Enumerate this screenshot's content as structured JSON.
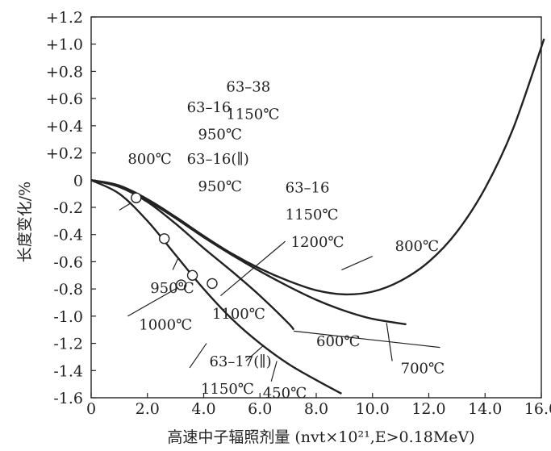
{
  "chart_data": {
    "type": "line",
    "xlabel": "高速中子辐照剂量 (nvt×10²¹,E>0.18MeV)",
    "ylabel": "长度变化/%",
    "xlim": [
      0,
      16.0
    ],
    "ylim": [
      -1.6,
      1.2
    ],
    "x_ticks": [
      "0",
      "2.0",
      "4.0",
      "6.0",
      "8.0",
      "10.0",
      "12.0",
      "14.0",
      "16.0"
    ],
    "y_ticks": [
      "+1.2",
      "+1.0",
      "+0.8",
      "+0.6",
      "+0.4",
      "+0.2",
      "0",
      "-0.2",
      "-0.4",
      "-0.6",
      "-0.8",
      "-1.0",
      "-1.2",
      "-1.4",
      "-1.6"
    ],
    "grid": false,
    "series": [
      {
        "name": "800℃",
        "x": [
          0,
          1,
          2,
          3,
          4,
          5,
          6,
          7,
          8,
          9,
          10,
          11,
          12,
          13,
          14,
          15,
          16.1
        ],
        "values": [
          0,
          -0.04,
          -0.14,
          -0.27,
          -0.41,
          -0.54,
          -0.65,
          -0.74,
          -0.81,
          -0.84,
          -0.82,
          -0.74,
          -0.6,
          -0.38,
          -0.06,
          0.38,
          1.04
        ]
      },
      {
        "name": "700℃",
        "x": [
          0,
          1,
          2,
          3,
          4,
          5,
          6,
          7,
          8,
          9,
          10,
          11.2
        ],
        "values": [
          0,
          -0.04,
          -0.15,
          -0.28,
          -0.42,
          -0.55,
          -0.67,
          -0.78,
          -0.88,
          -0.96,
          -1.02,
          -1.06
        ]
      },
      {
        "name": "600℃",
        "x": [
          0,
          1,
          2,
          3,
          4,
          5,
          6,
          7,
          7.2
        ],
        "values": [
          0,
          -0.05,
          -0.16,
          -0.32,
          -0.5,
          -0.67,
          -0.85,
          -1.05,
          -1.1
        ]
      },
      {
        "name": "450℃",
        "x": [
          0,
          1,
          2,
          3,
          4,
          5,
          6,
          7,
          8,
          8.9
        ],
        "values": [
          0,
          -0.1,
          -0.3,
          -0.55,
          -0.8,
          -1.02,
          -1.2,
          -1.35,
          -1.47,
          -1.57
        ]
      }
    ],
    "points": [
      {
        "x": 1.6,
        "y": -0.13
      },
      {
        "x": 2.6,
        "y": -0.43
      },
      {
        "x": 3.2,
        "y": -0.77
      },
      {
        "x": 3.6,
        "y": -0.7
      },
      {
        "x": 4.3,
        "y": -0.76
      }
    ],
    "annotations": [
      {
        "text": "63–38",
        "x": 4.8,
        "y": 0.65
      },
      {
        "text": "1150℃",
        "x": 4.8,
        "y": 0.45
      },
      {
        "text": "63–16",
        "x": 3.4,
        "y": 0.5
      },
      {
        "text": "950℃",
        "x": 3.8,
        "y": 0.3
      },
      {
        "text": "63–16(∥)",
        "x": 3.4,
        "y": 0.12
      },
      {
        "text": "950℃",
        "x": 3.8,
        "y": -0.08
      },
      {
        "text": "800℃",
        "x": 1.3,
        "y": 0.12
      },
      {
        "text": "63–16",
        "x": 6.9,
        "y": -0.09
      },
      {
        "text": "1150℃",
        "x": 6.9,
        "y": -0.29
      },
      {
        "text": "1200℃",
        "x": 7.1,
        "y": -0.49
      },
      {
        "text": "800℃",
        "x": 10.8,
        "y": -0.52
      },
      {
        "text": "950℃",
        "x": 2.1,
        "y": -0.83
      },
      {
        "text": "1100℃",
        "x": 4.3,
        "y": -1.02
      },
      {
        "text": "1000℃",
        "x": 1.7,
        "y": -1.1
      },
      {
        "text": "600℃",
        "x": 8.0,
        "y": -1.22
      },
      {
        "text": "63–17(∥)",
        "x": 4.2,
        "y": -1.37
      },
      {
        "text": "700℃",
        "x": 11.0,
        "y": -1.42
      },
      {
        "text": "1150℃",
        "x": 3.9,
        "y": -1.57
      },
      {
        "text": "450℃",
        "x": 6.1,
        "y": -1.6
      }
    ]
  }
}
